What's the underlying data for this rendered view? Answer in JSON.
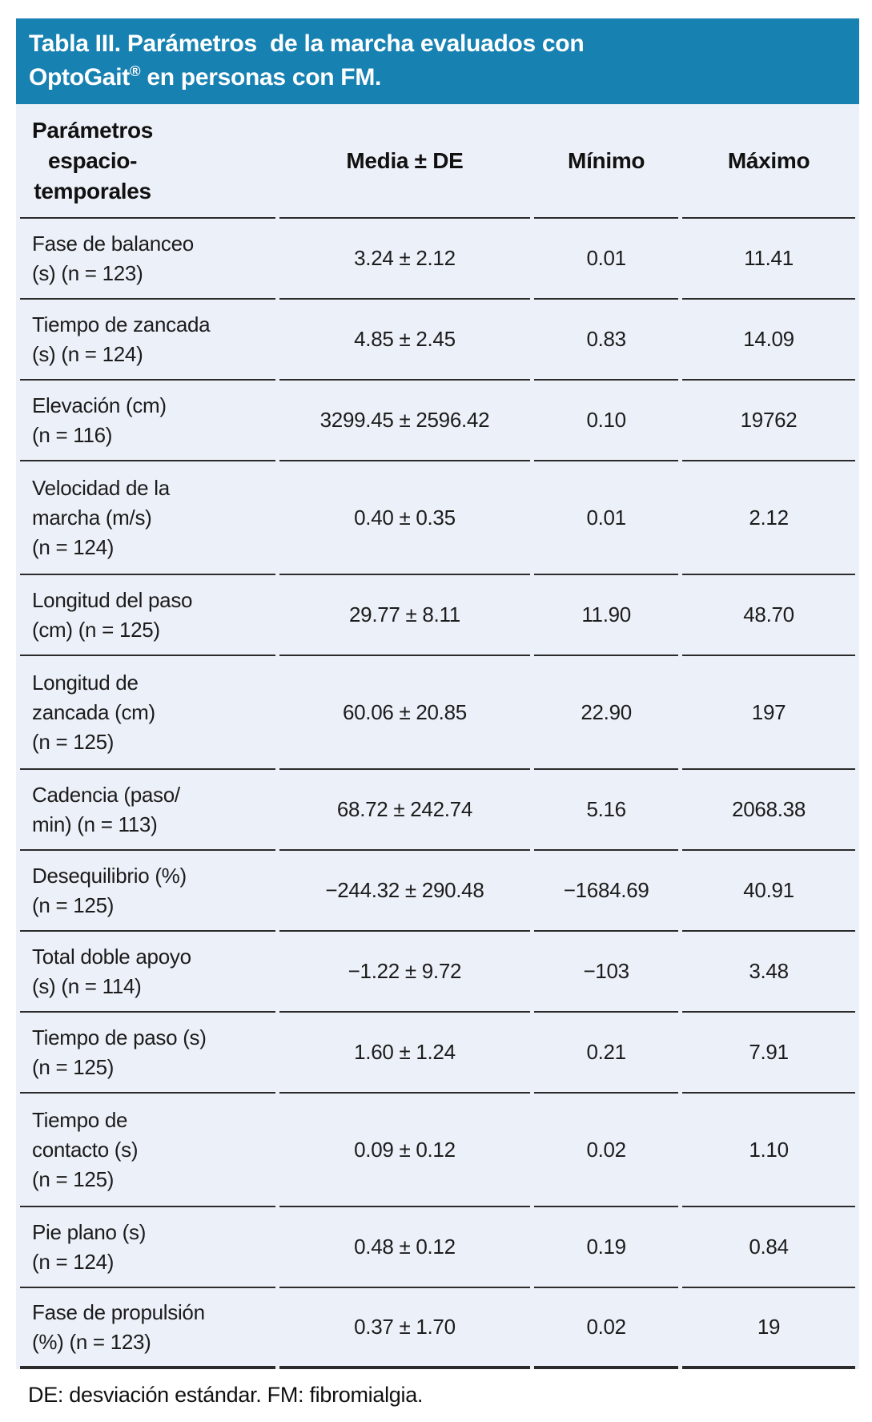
{
  "header": {
    "title_line1": "Tabla III. Parámetros  de la marcha evaluados con",
    "title_line2_brand": "OptoGait",
    "title_line2_sup": "®",
    "title_line2_rest": " en personas con FM."
  },
  "table": {
    "columns": {
      "parameters": "Parámetros\nespacio-\ntemporales",
      "media_de": "Media ± DE",
      "minimo": "Mínimo",
      "maximo": "Máximo"
    },
    "rows": [
      {
        "label": "Fase de balanceo\n(s) (n = 123)",
        "media_de": "3.24 ± 2.12",
        "minimo": "0.01",
        "maximo": "11.41"
      },
      {
        "label": "Tiempo de zancada\n(s) (n = 124)",
        "media_de": "4.85 ± 2.45",
        "minimo": "0.83",
        "maximo": "14.09"
      },
      {
        "label": "Elevación (cm)\n(n = 116)",
        "media_de": "3299.45 ± 2596.42",
        "minimo": "0.10",
        "maximo": "19762"
      },
      {
        "label": "Velocidad de la\nmarcha (m/s)\n(n = 124)",
        "media_de": "0.40 ± 0.35",
        "minimo": "0.01",
        "maximo": "2.12"
      },
      {
        "label": "Longitud del paso\n(cm) (n = 125)",
        "media_de": "29.77 ± 8.11",
        "minimo": "11.90",
        "maximo": "48.70"
      },
      {
        "label": "Longitud de\nzancada (cm)\n(n = 125)",
        "media_de": "60.06 ± 20.85",
        "minimo": "22.90",
        "maximo": "197"
      },
      {
        "label": "Cadencia (paso/\nmin) (n = 113)",
        "media_de": "68.72 ± 242.74",
        "minimo": "5.16",
        "maximo": "2068.38"
      },
      {
        "label": "Desequilibrio (%)\n(n = 125)",
        "media_de": "−244.32 ± 290.48",
        "minimo": "−1684.69",
        "maximo": "40.91"
      },
      {
        "label": "Total doble apoyo\n(s) (n = 114)",
        "media_de": "−1.22 ± 9.72",
        "minimo": "−103",
        "maximo": "3.48"
      },
      {
        "label": "Tiempo de paso (s)\n(n = 125)",
        "media_de": "1.60 ± 1.24",
        "minimo": "0.21",
        "maximo": "7.91"
      },
      {
        "label": "Tiempo de\ncontacto (s)\n(n = 125)",
        "media_de": "0.09 ± 0.12",
        "minimo": "0.02",
        "maximo": "1.10"
      },
      {
        "label": "Pie plano (s)\n(n = 124)",
        "media_de": "0.48 ± 0.12",
        "minimo": "0.19",
        "maximo": "0.84"
      },
      {
        "label": "Fase de propulsión\n(%) (n = 123)",
        "media_de": "0.37 ± 1.70",
        "minimo": "0.02",
        "maximo": "19"
      }
    ]
  },
  "footnote": "DE: desviación estándar. FM: fibromialgia.",
  "colors": {
    "title_bar_bg": "#1781b2",
    "title_text": "#ffffff",
    "table_bg": "#ecf0f8",
    "rule": "#2b2b2b"
  }
}
